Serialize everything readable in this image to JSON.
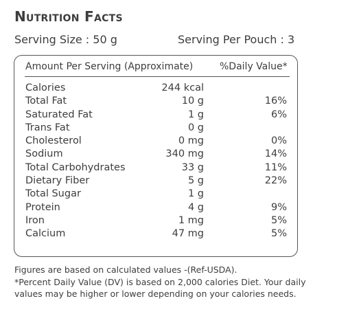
{
  "title": "Nutrition Facts",
  "serving_size": "Serving Size : 50 g",
  "serving_per_pouch": "Serving Per Pouch : 3",
  "table": {
    "header_amount": "Amount Per Serving (Approximate)",
    "header_dv": "%Daily Value*",
    "rows": [
      {
        "name": "Calories",
        "amount": "244 kcal",
        "dv": ""
      },
      {
        "name": "Total Fat",
        "amount": "10 g",
        "dv": "16%"
      },
      {
        "name": "Saturated Fat",
        "amount": "1 g",
        "dv": "6%"
      },
      {
        "name": "Trans Fat",
        "amount": "0 g",
        "dv": ""
      },
      {
        "name": "Cholesterol",
        "amount": "0 mg",
        "dv": "0%"
      },
      {
        "name": "Sodium",
        "amount": "340 mg",
        "dv": "14%"
      },
      {
        "name": "Total Carbohydrates",
        "amount": "33 g",
        "dv": "11%"
      },
      {
        "name": "Dietary Fiber",
        "amount": "5 g",
        "dv": "22%"
      },
      {
        "name": "Total Sugar",
        "amount": "1 g",
        "dv": ""
      },
      {
        "name": "Protein",
        "amount": "4 g",
        "dv": "9%"
      },
      {
        "name": "Iron",
        "amount": "1 mg",
        "dv": "5%"
      },
      {
        "name": "Calcium",
        "amount": "47 mg",
        "dv": "5%"
      }
    ]
  },
  "footnote": {
    "line1": "Figures are based on calculated values -(Ref-USDA).",
    "line2": "*Percent Daily Value (DV) is based on 2,000 calories Diet. Your daily",
    "line3": "values may be higher or lower depending on your calories needs."
  }
}
